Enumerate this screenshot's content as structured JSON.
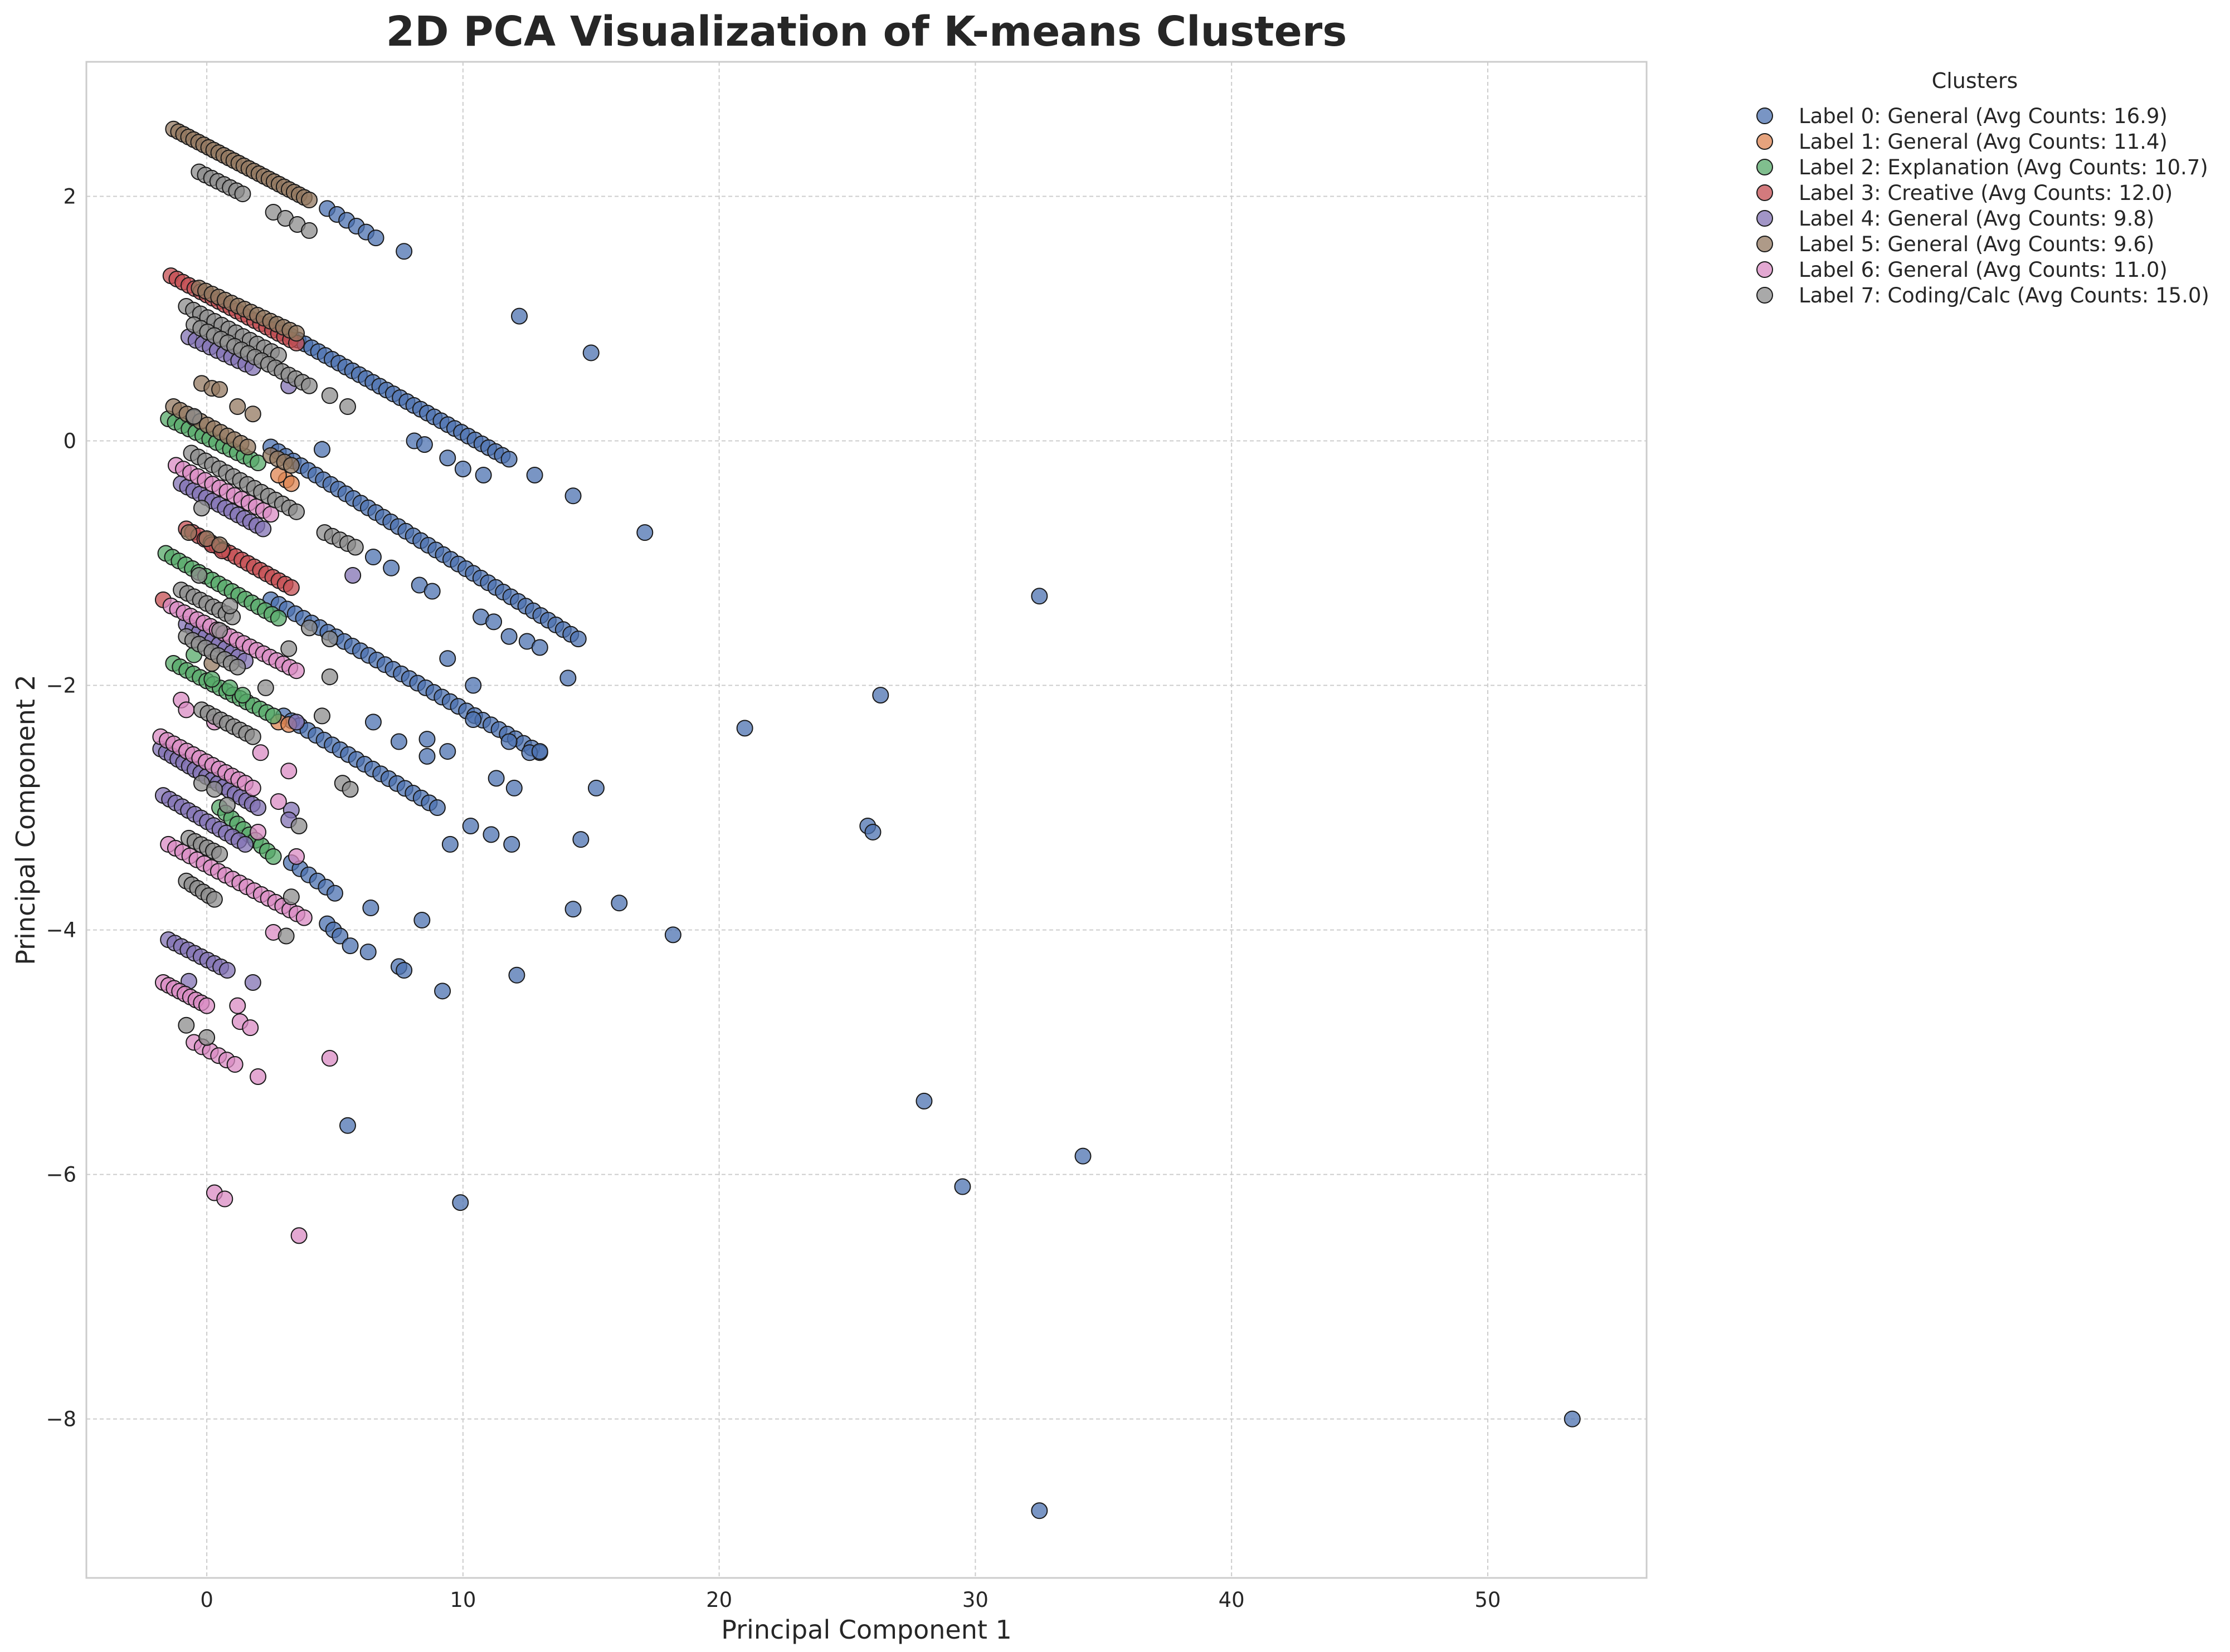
{
  "chart_data": {
    "type": "scatter",
    "title": "2D PCA Visualization of K-means Clusters",
    "xlabel": "Principal Component 1",
    "ylabel": "Principal Component 2",
    "xlim": [
      -4.7,
      56.2
    ],
    "ylim": [
      -9.3,
      3.1
    ],
    "xticks": [
      0,
      10,
      20,
      30,
      40,
      50
    ],
    "yticks": [
      2,
      0,
      -2,
      -4,
      -6,
      -8
    ],
    "grid": true,
    "legend": {
      "title": "Clusters",
      "placement": "outside-top-right"
    },
    "series": [
      {
        "name": "Label 0: General (Avg Counts: 16.9)",
        "color": "#4c72b0",
        "segments": [
          {
            "x0": 4.7,
            "y0": 1.9,
            "x1": 6.6,
            "y1": 1.66,
            "n": 6
          },
          {
            "x0": 2.5,
            "y0": 0.95,
            "x1": 11.8,
            "y1": -0.15,
            "n": 36
          },
          {
            "x0": 2.5,
            "y0": -0.05,
            "x1": 14.5,
            "y1": -1.62,
            "n": 42
          },
          {
            "x0": 2.5,
            "y0": -1.3,
            "x1": 13.0,
            "y1": -2.55,
            "n": 34
          },
          {
            "x0": 3.0,
            "y0": -2.25,
            "x1": 9.0,
            "y1": -3.0,
            "n": 20
          },
          {
            "x0": 3.3,
            "y0": -3.45,
            "x1": 5.0,
            "y1": -3.7,
            "n": 6
          },
          {
            "x0": 4.7,
            "y0": -3.95,
            "x1": 5.2,
            "y1": -4.05,
            "n": 3
          }
        ],
        "points": [
          [
            7.7,
            1.55
          ],
          [
            12.2,
            1.02
          ],
          [
            15.0,
            0.72
          ],
          [
            8.1,
            0.0
          ],
          [
            4.5,
            -0.07
          ],
          [
            8.5,
            -0.03
          ],
          [
            9.4,
            -0.14
          ],
          [
            10.0,
            -0.23
          ],
          [
            10.8,
            -0.28
          ],
          [
            12.8,
            -0.28
          ],
          [
            14.3,
            -0.45
          ],
          [
            17.1,
            -0.75
          ],
          [
            6.5,
            -0.95
          ],
          [
            7.2,
            -1.04
          ],
          [
            8.3,
            -1.18
          ],
          [
            8.8,
            -1.23
          ],
          [
            10.7,
            -1.44
          ],
          [
            11.2,
            -1.48
          ],
          [
            11.8,
            -1.6
          ],
          [
            12.5,
            -1.64
          ],
          [
            13.0,
            -1.69
          ],
          [
            9.4,
            -1.78
          ],
          [
            10.4,
            -2.0
          ],
          [
            14.1,
            -1.94
          ],
          [
            6.5,
            -2.3
          ],
          [
            10.4,
            -2.28
          ],
          [
            7.5,
            -2.46
          ],
          [
            8.6,
            -2.44
          ],
          [
            8.6,
            -2.58
          ],
          [
            9.4,
            -2.54
          ],
          [
            11.8,
            -2.46
          ],
          [
            12.6,
            -2.55
          ],
          [
            13.0,
            -2.54
          ],
          [
            11.3,
            -2.76
          ],
          [
            12.0,
            -2.84
          ],
          [
            15.2,
            -2.84
          ],
          [
            10.3,
            -3.15
          ],
          [
            11.1,
            -3.22
          ],
          [
            11.9,
            -3.3
          ],
          [
            9.5,
            -3.3
          ],
          [
            14.6,
            -3.26
          ],
          [
            6.4,
            -3.82
          ],
          [
            8.4,
            -3.92
          ],
          [
            14.3,
            -3.83
          ],
          [
            16.1,
            -3.78
          ],
          [
            18.2,
            -4.04
          ],
          [
            5.6,
            -4.13
          ],
          [
            6.3,
            -4.18
          ],
          [
            7.5,
            -4.3
          ],
          [
            7.7,
            -4.33
          ],
          [
            12.1,
            -4.37
          ],
          [
            9.2,
            -4.5
          ],
          [
            5.5,
            -5.6
          ],
          [
            9.9,
            -6.23
          ],
          [
            21.0,
            -2.35
          ],
          [
            26.3,
            -2.08
          ],
          [
            25.8,
            -3.15
          ],
          [
            26.0,
            -3.2
          ],
          [
            32.5,
            -1.27
          ],
          [
            28.0,
            -5.4
          ],
          [
            29.5,
            -6.1
          ],
          [
            34.2,
            -5.85
          ],
          [
            32.5,
            -8.75
          ],
          [
            53.3,
            -8.0
          ]
        ]
      },
      {
        "name": "Label 1: General (Avg Counts: 11.4)",
        "color": "#dd8452",
        "segments": [],
        "points": [
          [
            3.1,
            -0.32
          ],
          [
            2.8,
            -0.28
          ],
          [
            3.3,
            -0.35
          ],
          [
            2.8,
            -2.3
          ],
          [
            3.2,
            -2.32
          ]
        ]
      },
      {
        "name": "Label 2: Explanation (Avg Counts: 10.7)",
        "color": "#55a868",
        "segments": [
          {
            "x0": -1.5,
            "y0": 0.18,
            "x1": 2.0,
            "y1": -0.18,
            "n": 14
          },
          {
            "x0": -1.6,
            "y0": -0.92,
            "x1": 2.8,
            "y1": -1.45,
            "n": 18
          },
          {
            "x0": -1.3,
            "y0": -1.82,
            "x1": 2.6,
            "y1": -2.25,
            "n": 16
          },
          {
            "x0": 0.5,
            "y0": -3.0,
            "x1": 2.6,
            "y1": -3.4,
            "n": 10
          }
        ],
        "points": [
          [
            -0.5,
            -1.75
          ],
          [
            0.2,
            -1.95
          ],
          [
            0.9,
            -2.02
          ],
          [
            1.4,
            -2.08
          ]
        ]
      },
      {
        "name": "Label 3: Creative (Avg Counts: 12.0)",
        "color": "#c44e52",
        "segments": [
          {
            "x0": -1.4,
            "y0": 1.35,
            "x1": 3.5,
            "y1": 0.8,
            "n": 22
          },
          {
            "x0": -0.8,
            "y0": -0.72,
            "x1": 3.3,
            "y1": -1.2,
            "n": 18
          }
        ],
        "points": [
          [
            -1.7,
            -1.3
          ],
          [
            0.2,
            -0.85
          ],
          [
            0.6,
            -0.9
          ]
        ]
      },
      {
        "name": "Label 4: General (Avg Counts: 9.8)",
        "color": "#8172b3",
        "segments": [
          {
            "x0": -0.7,
            "y0": 0.85,
            "x1": 1.8,
            "y1": 0.6,
            "n": 10
          },
          {
            "x0": -1.0,
            "y0": -0.35,
            "x1": 2.2,
            "y1": -0.72,
            "n": 14
          },
          {
            "x0": -0.8,
            "y0": -1.5,
            "x1": 1.5,
            "y1": -1.8,
            "n": 10
          },
          {
            "x0": -1.8,
            "y0": -2.52,
            "x1": 2.0,
            "y1": -3.0,
            "n": 18
          },
          {
            "x0": -1.7,
            "y0": -2.9,
            "x1": 1.5,
            "y1": -3.3,
            "n": 14
          },
          {
            "x0": -1.5,
            "y0": -4.08,
            "x1": 0.8,
            "y1": -4.33,
            "n": 10
          }
        ],
        "points": [
          [
            5.7,
            -1.1
          ],
          [
            3.2,
            0.45
          ],
          [
            3.3,
            -3.02
          ],
          [
            1.8,
            -4.43
          ],
          [
            -0.7,
            -4.42
          ],
          [
            3.5,
            -2.3
          ],
          [
            3.2,
            -3.1
          ]
        ]
      },
      {
        "name": "Label 5: General (Avg Counts: 9.6)",
        "color": "#937860",
        "segments": [
          {
            "x0": -1.3,
            "y0": 2.55,
            "x1": 4.0,
            "y1": 1.97,
            "n": 28
          },
          {
            "x0": -0.3,
            "y0": 1.25,
            "x1": 3.5,
            "y1": 0.88,
            "n": 16
          },
          {
            "x0": -1.3,
            "y0": 0.28,
            "x1": 1.6,
            "y1": -0.05,
            "n": 12
          },
          {
            "x0": 2.5,
            "y0": -0.12,
            "x1": 3.3,
            "y1": -0.2,
            "n": 4
          }
        ],
        "points": [
          [
            -0.2,
            0.47
          ],
          [
            0.2,
            0.43
          ],
          [
            0.5,
            0.42
          ],
          [
            1.2,
            0.28
          ],
          [
            1.8,
            0.22
          ],
          [
            -0.7,
            -0.75
          ],
          [
            0.0,
            -0.8
          ],
          [
            0.5,
            -0.85
          ],
          [
            0.2,
            -1.82
          ]
        ]
      },
      {
        "name": "Label 6: General (Avg Counts: 11.0)",
        "color": "#da8bc3",
        "segments": [
          {
            "x0": -1.2,
            "y0": -0.2,
            "x1": 2.5,
            "y1": -0.6,
            "n": 14
          },
          {
            "x0": -1.4,
            "y0": -1.35,
            "x1": 3.5,
            "y1": -1.88,
            "n": 20
          },
          {
            "x0": -1.8,
            "y0": -2.42,
            "x1": 1.5,
            "y1": -2.8,
            "n": 14
          },
          {
            "x0": -1.5,
            "y0": -3.3,
            "x1": 3.8,
            "y1": -3.9,
            "n": 20
          },
          {
            "x0": -1.7,
            "y0": -4.43,
            "x1": 0.0,
            "y1": -4.62,
            "n": 9
          },
          {
            "x0": -0.5,
            "y0": -4.92,
            "x1": 1.1,
            "y1": -5.1,
            "n": 6
          }
        ],
        "points": [
          [
            -1.0,
            -2.12
          ],
          [
            -0.8,
            -2.2
          ],
          [
            0.3,
            -2.3
          ],
          [
            1.8,
            -2.84
          ],
          [
            2.1,
            -2.55
          ],
          [
            3.2,
            -2.7
          ],
          [
            2.8,
            -2.95
          ],
          [
            2.0,
            -3.2
          ],
          [
            3.5,
            -3.4
          ],
          [
            2.6,
            -4.02
          ],
          [
            1.2,
            -4.62
          ],
          [
            1.3,
            -4.75
          ],
          [
            1.7,
            -4.8
          ],
          [
            2.0,
            -5.2
          ],
          [
            4.8,
            -5.05
          ],
          [
            0.3,
            -6.15
          ],
          [
            0.7,
            -6.2
          ],
          [
            3.6,
            -6.5
          ]
        ]
      },
      {
        "name": "Label 7: Coding/Calc (Avg Counts: 15.0)",
        "color": "#8c8c8c",
        "segments": [
          {
            "x0": -0.3,
            "y0": 2.2,
            "x1": 1.4,
            "y1": 2.02,
            "n": 8
          },
          {
            "x0": 2.6,
            "y0": 1.87,
            "x1": 4.0,
            "y1": 1.72,
            "n": 4
          },
          {
            "x0": -0.8,
            "y0": 1.1,
            "x1": 2.8,
            "y1": 0.7,
            "n": 14
          },
          {
            "x0": -0.5,
            "y0": 0.95,
            "x1": 4.0,
            "y1": 0.45,
            "n": 18
          },
          {
            "x0": -0.6,
            "y0": -0.1,
            "x1": 3.5,
            "y1": -0.58,
            "n": 16
          },
          {
            "x0": 4.6,
            "y0": -0.75,
            "x1": 5.8,
            "y1": -0.87,
            "n": 5
          },
          {
            "x0": -1.0,
            "y0": -1.22,
            "x1": 1.0,
            "y1": -1.44,
            "n": 9
          },
          {
            "x0": -0.8,
            "y0": -1.6,
            "x1": 1.2,
            "y1": -1.85,
            "n": 9
          },
          {
            "x0": -0.2,
            "y0": -2.2,
            "x1": 1.8,
            "y1": -2.42,
            "n": 9
          },
          {
            "x0": -0.7,
            "y0": -3.25,
            "x1": 0.5,
            "y1": -3.38,
            "n": 6
          },
          {
            "x0": -0.8,
            "y0": -3.6,
            "x1": 0.3,
            "y1": -3.75,
            "n": 6
          }
        ],
        "points": [
          [
            4.8,
            0.37
          ],
          [
            5.5,
            0.28
          ],
          [
            -0.5,
            0.2
          ],
          [
            -0.2,
            -0.55
          ],
          [
            4.0,
            -1.53
          ],
          [
            4.8,
            -1.62
          ],
          [
            3.2,
            -1.7
          ],
          [
            4.8,
            -1.93
          ],
          [
            2.3,
            -2.02
          ],
          [
            4.5,
            -2.25
          ],
          [
            -0.2,
            -2.8
          ],
          [
            0.3,
            -2.85
          ],
          [
            0.8,
            -2.98
          ],
          [
            5.3,
            -2.8
          ],
          [
            5.6,
            -2.85
          ],
          [
            3.6,
            -3.15
          ],
          [
            3.3,
            -3.73
          ],
          [
            3.1,
            -4.05
          ],
          [
            -0.8,
            -4.78
          ],
          [
            0.0,
            -4.88
          ],
          [
            0.9,
            -1.35
          ],
          [
            0.5,
            -1.55
          ],
          [
            -0.3,
            -1.1
          ]
        ]
      }
    ]
  }
}
